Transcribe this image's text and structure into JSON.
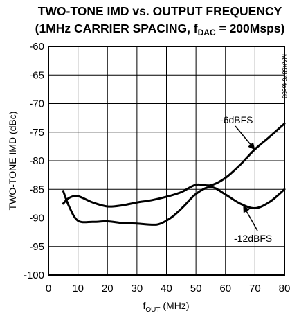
{
  "chart_data": {
    "type": "line",
    "title_line1": "TWO-TONE IMD vs. OUTPUT FREQUENCY",
    "title_line2_prefix": "(1MHz CARRIER SPACING, f",
    "title_line2_sub": "DAC",
    "title_line2_suffix": " = 200Msps)",
    "ylabel": "TWO-TONE IMD (dBc)",
    "xlabel_prefix": "f",
    "xlabel_sub": "OUT",
    "xlabel_suffix": " (MHz)",
    "watermark": "MAX5876 toc08",
    "xlim": [
      0,
      80
    ],
    "ylim": [
      -100,
      -60
    ],
    "xticks": [
      0,
      10,
      20,
      30,
      40,
      50,
      60,
      70,
      80
    ],
    "yticks": [
      -60,
      -65,
      -70,
      -75,
      -80,
      -85,
      -90,
      -95,
      -100
    ],
    "grid": true,
    "series": [
      {
        "name": "-6dBFS",
        "x": [
          5,
          7,
          10,
          15,
          20,
          25,
          30,
          35,
          40,
          45,
          50,
          55,
          60,
          65,
          70,
          75,
          80
        ],
        "y": [
          -87.5,
          -86.5,
          -86.2,
          -87.3,
          -88.0,
          -87.8,
          -87.3,
          -86.9,
          -86.3,
          -85.5,
          -84.2,
          -84.3,
          -83.0,
          -80.7,
          -78.0,
          -75.8,
          -73.5
        ]
      },
      {
        "name": "-12dBFS",
        "x": [
          5,
          7,
          10,
          15,
          20,
          25,
          30,
          35,
          38,
          42,
          46,
          50,
          55,
          60,
          65,
          70,
          75,
          80
        ],
        "y": [
          -85.3,
          -88.0,
          -90.5,
          -90.7,
          -90.6,
          -90.9,
          -91.0,
          -91.2,
          -91.0,
          -89.8,
          -87.9,
          -85.8,
          -84.6,
          -85.9,
          -87.5,
          -88.3,
          -87.2,
          -85.0
        ]
      }
    ],
    "annotations": [
      {
        "text": "-6dBFS",
        "series": 0,
        "target_x": 70,
        "target_y": -78.1
      },
      {
        "text": "-12dBFS",
        "series": 1,
        "target_x": 66,
        "target_y": -87.8
      }
    ]
  }
}
